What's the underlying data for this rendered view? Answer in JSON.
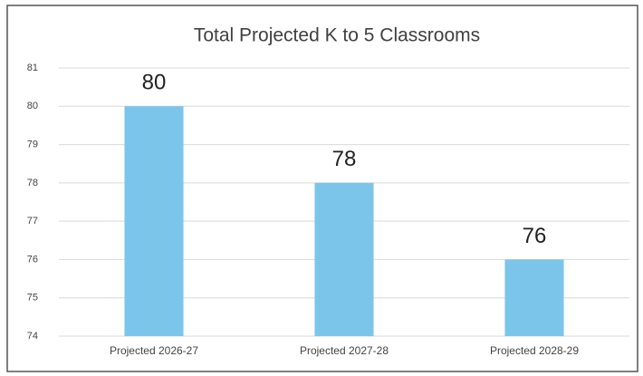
{
  "chart_data": {
    "type": "bar",
    "title": "Total Projected K to 5 Classrooms",
    "categories": [
      "Projected 2026-27",
      "Projected 2027-28",
      "Projected 2028-29"
    ],
    "values": [
      80,
      78,
      76
    ],
    "color": "#7cc5ea",
    "ylim": [
      74,
      81
    ],
    "yticks": [
      74,
      75,
      76,
      77,
      78,
      79,
      80,
      81
    ],
    "grid": true
  }
}
